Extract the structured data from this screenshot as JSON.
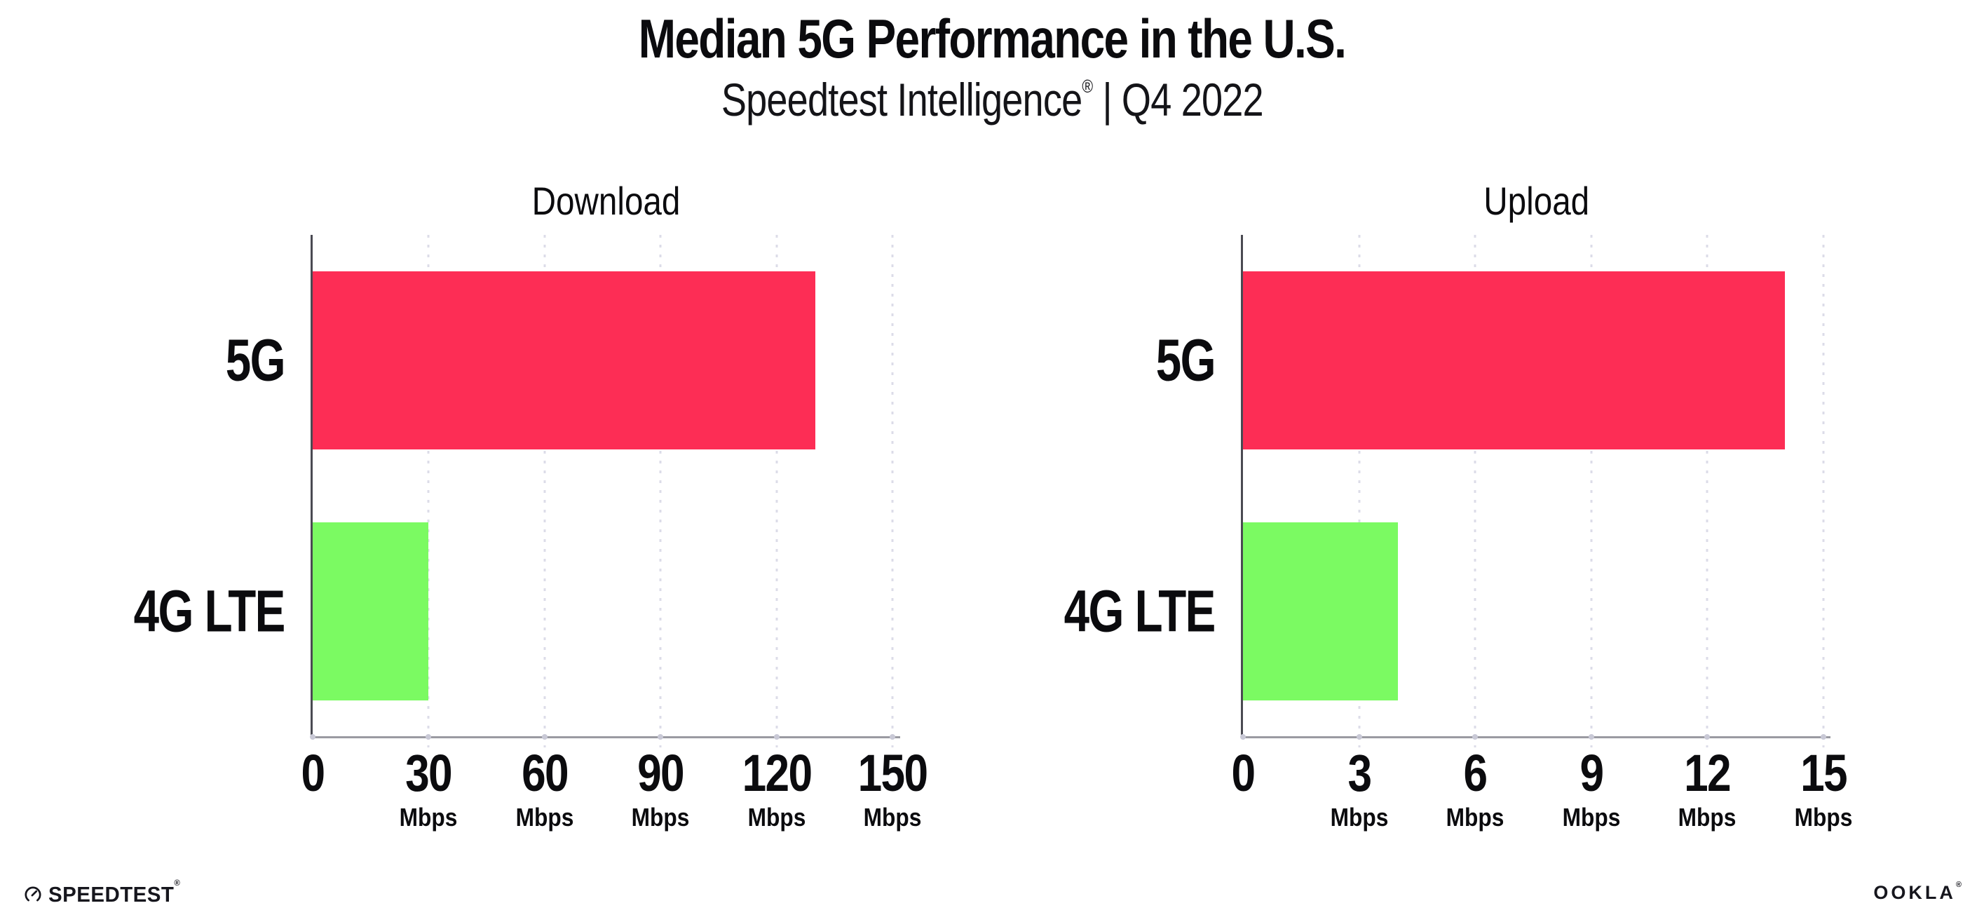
{
  "header": {
    "title": "Median 5G Performance in the U.S.",
    "subtitle_brand": "Speedtest Intelligence",
    "subtitle_reg": "®",
    "subtitle_rest": " | Q4 2022"
  },
  "chart_data": [
    {
      "type": "bar",
      "orientation": "horizontal",
      "title": "Download",
      "categories": [
        "5G",
        "4G LTE"
      ],
      "values": [
        130,
        30
      ],
      "unit": "Mbps",
      "xlim": [
        0,
        150
      ],
      "ticks": [
        0,
        30,
        60,
        90,
        120,
        150
      ],
      "tick_unit_on_zero": false,
      "bar_colors": [
        "#fd2d55",
        "#7bfa62"
      ],
      "grid": "dotted-vertical",
      "legend": "none"
    },
    {
      "type": "bar",
      "orientation": "horizontal",
      "title": "Upload",
      "categories": [
        "5G",
        "4G LTE"
      ],
      "values": [
        14,
        4
      ],
      "unit": "Mbps",
      "xlim": [
        0,
        15
      ],
      "ticks": [
        0,
        3,
        6,
        9,
        12,
        15
      ],
      "tick_unit_on_zero": false,
      "bar_colors": [
        "#fd2d55",
        "#7bfa62"
      ],
      "grid": "dotted-vertical",
      "legend": "none"
    }
  ],
  "footer": {
    "speedtest_label": "SPEEDTEST",
    "speedtest_mark": "®",
    "ookla_label": "OOKLA",
    "ookla_mark": "®"
  },
  "colors": {
    "bar_5g": "#fd2d55",
    "bar_4g_lte": "#7bfa62",
    "gridline": "#dcdce8",
    "axis_bottom": "#9a9aa2",
    "axis_left": "#4a4a52",
    "text": "#0b0b0e"
  }
}
